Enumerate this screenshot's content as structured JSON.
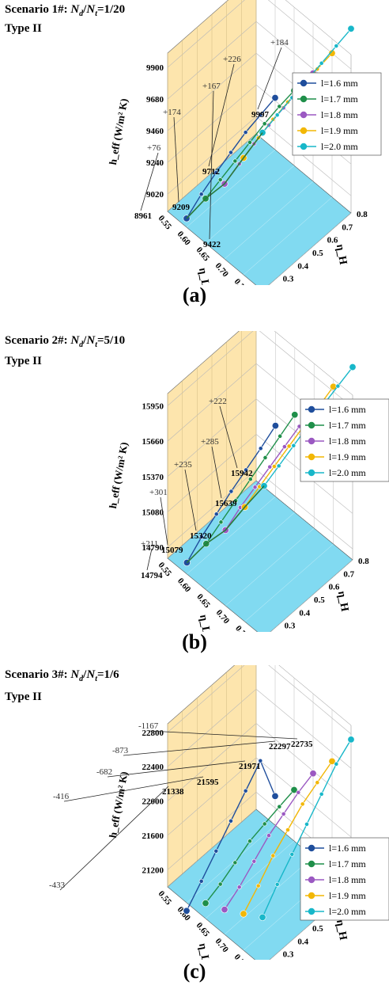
{
  "panels": [
    {
      "id": "a",
      "scenario_prefix": "Scenario 1#:",
      "ratio_value": "=1/20",
      "type_label": "Type II",
      "panel_label": "(a)"
    },
    {
      "id": "b",
      "scenario_prefix": "Scenario 2#:",
      "ratio_value": "=5/10",
      "type_label": "Type II",
      "panel_label": "(b)"
    },
    {
      "id": "c",
      "scenario_prefix": "Scenario 3#:",
      "ratio_value": "=1/6",
      "type_label": "Type II",
      "panel_label": "(c)"
    }
  ],
  "colors": {
    "l1.6": "#1f4e9c",
    "l1.7": "#1f8f4a",
    "l1.8": "#9b59c2",
    "l1.9": "#f2b705",
    "l2.0": "#18b7c9",
    "back_wall": "#fde5ad",
    "floor": "#7ad8f0"
  },
  "chart_data": [
    {
      "type": "line",
      "title": "",
      "zlabel": "h_eff (W/m² K)",
      "xlabel": "η_L",
      "ylabel": "η_H",
      "xlim": [
        0.55,
        0.8
      ],
      "ylim": [
        0.2,
        0.8
      ],
      "zlim": [
        8900,
        10000
      ],
      "x_ticks": [
        "0.55",
        "0.60",
        "0.65",
        "0.70",
        "0.75",
        "0.80"
      ],
      "y_ticks": [
        "0.2",
        "0.3",
        "0.4",
        "0.5",
        "0.6",
        "0.7",
        "0.8"
      ],
      "z_ticks": [
        "9020",
        "9240",
        "9460",
        "9680",
        "9900"
      ],
      "legend_position": "right",
      "series": [
        {
          "name": "l=1.6 mm",
          "x": 0.6,
          "eta_H": [
            0.2,
            0.3,
            0.4,
            0.5,
            0.6,
            0.7,
            0.8
          ],
          "values": [
            8961,
            9040,
            9100,
            9150,
            9200,
            9230,
            9260
          ]
        },
        {
          "name": "l=1.7 mm",
          "x": 0.65,
          "eta_H": [
            0.2,
            0.3,
            0.4,
            0.5,
            0.6,
            0.7,
            0.8
          ],
          "values": [
            9209,
            9250,
            9290,
            9330,
            9370,
            9400,
            9420
          ]
        },
        {
          "name": "l=1.8 mm",
          "x": 0.7,
          "eta_H": [
            0.2,
            0.3,
            0.4,
            0.5,
            0.6,
            0.7,
            0.8
          ],
          "values": [
            9422,
            9470,
            9520,
            9560,
            9590,
            9620,
            9650
          ]
        },
        {
          "name": "l=1.9 mm",
          "x": 0.75,
          "eta_H": [
            0.2,
            0.3,
            0.4,
            0.5,
            0.6,
            0.7,
            0.8
          ],
          "values": [
            9712,
            9760,
            9800,
            9830,
            9860,
            9880,
            9900
          ]
        },
        {
          "name": "l=2.0 mm",
          "x": 0.8,
          "eta_H": [
            0.2,
            0.3,
            0.4,
            0.5,
            0.6,
            0.7,
            0.8
          ],
          "values": [
            9997,
            10030,
            10060,
            10090,
            10120,
            10150,
            10180
          ]
        }
      ],
      "optimal_path": {
        "eta_H": [
          0.2,
          0.2,
          0.2,
          0.2,
          0.2
        ],
        "values": [
          8961,
          9209,
          9422,
          9712,
          9997
        ]
      },
      "annotations": [
        "8961",
        "9209",
        "9422",
        "9712",
        "9997",
        "+76",
        "+174",
        "+167",
        "+226",
        "+184"
      ]
    },
    {
      "type": "line",
      "title": "",
      "zlabel": "h_eff (W/m² K)",
      "xlabel": "η_L",
      "ylabel": "η_H",
      "xlim": [
        0.55,
        0.8
      ],
      "ylim": [
        0.2,
        0.8
      ],
      "zlim": [
        14700,
        16050
      ],
      "x_ticks": [
        "0.55",
        "0.60",
        "0.65",
        "0.70",
        "0.75",
        "0.80"
      ],
      "y_ticks": [
        "0.2",
        "0.3",
        "0.4",
        "0.5",
        "0.6",
        "0.7",
        "0.8"
      ],
      "z_ticks": [
        "14790",
        "15080",
        "15370",
        "15660",
        "15950"
      ],
      "legend_position": "right",
      "series": [
        {
          "name": "l=1.6 mm",
          "x": 0.6,
          "eta_H": [
            0.2,
            0.3,
            0.4,
            0.5,
            0.6,
            0.7,
            0.8
          ],
          "values": [
            14794,
            14900,
            14980,
            15060,
            15130,
            15200,
            15280
          ]
        },
        {
          "name": "l=1.7 mm",
          "x": 0.65,
          "eta_H": [
            0.2,
            0.3,
            0.4,
            0.5,
            0.6,
            0.7,
            0.8
          ],
          "values": [
            15079,
            15150,
            15220,
            15290,
            15360,
            15430,
            15500
          ]
        },
        {
          "name": "l=1.8 mm",
          "x": 0.7,
          "eta_H": [
            0.2,
            0.3,
            0.4,
            0.5,
            0.6,
            0.7,
            0.8
          ],
          "values": [
            15320,
            15400,
            15460,
            15520,
            15580,
            15640,
            15700
          ]
        },
        {
          "name": "l=1.9 mm",
          "x": 0.75,
          "eta_H": [
            0.2,
            0.3,
            0.4,
            0.5,
            0.6,
            0.7,
            0.8
          ],
          "values": [
            15639,
            15700,
            15760,
            15820,
            15880,
            15930,
            15990
          ]
        },
        {
          "name": "l=2.0 mm",
          "x": 0.8,
          "eta_H": [
            0.2,
            0.3,
            0.4,
            0.5,
            0.6,
            0.7,
            0.8
          ],
          "values": [
            15942,
            16000,
            16060,
            16120,
            16180,
            16230,
            16280
          ]
        }
      ],
      "optimal_path": {
        "eta_H": [
          0.2,
          0.2,
          0.2,
          0.2,
          0.2
        ],
        "values": [
          14794,
          15079,
          15320,
          15639,
          15942
        ]
      },
      "annotations": [
        "14794",
        "15079",
        "15320",
        "15639",
        "15942",
        "+211",
        "+301",
        "+235",
        "+285",
        "+222"
      ]
    },
    {
      "type": "line",
      "title": "",
      "zlabel": "h_eff (W/m² K)",
      "xlabel": "η_L",
      "ylabel": "η_H",
      "xlim": [
        0.55,
        0.8
      ],
      "ylim": [
        0.2,
        0.8
      ],
      "zlim": [
        21000,
        22900
      ],
      "x_ticks": [
        "0.55",
        "0.60",
        "0.65",
        "0.70",
        "0.75",
        "0.80"
      ],
      "y_ticks": [
        "0.2",
        "0.3",
        "0.4",
        "0.5",
        "0.6",
        "0.7",
        "0.8"
      ],
      "z_ticks": [
        "21200",
        "21600",
        "22000",
        "22400",
        "22800"
      ],
      "legend_position": "right",
      "series": [
        {
          "name": "l=1.6 mm",
          "x": 0.6,
          "eta_H": [
            0.2,
            0.3,
            0.4,
            0.5,
            0.6,
            0.7,
            0.8
          ],
          "values": [
            20905,
            21100,
            21300,
            21500,
            21700,
            21900,
            21338
          ]
        },
        {
          "name": "l=1.7 mm",
          "x": 0.65,
          "eta_H": [
            0.2,
            0.3,
            0.4,
            0.5,
            0.6,
            0.7,
            0.8
          ],
          "values": [
            21179,
            21250,
            21350,
            21450,
            21500,
            21550,
            21595
          ]
        },
        {
          "name": "l=1.8 mm",
          "x": 0.7,
          "eta_H": [
            0.2,
            0.3,
            0.4,
            0.5,
            0.6,
            0.7,
            0.8
          ],
          "values": [
            21289,
            21400,
            21550,
            21700,
            21800,
            21900,
            21971
          ]
        },
        {
          "name": "l=1.9 mm",
          "x": 0.75,
          "eta_H": [
            0.2,
            0.3,
            0.4,
            0.5,
            0.6,
            0.7,
            0.8
          ],
          "values": [
            21424,
            21600,
            21800,
            21950,
            22100,
            22200,
            22297
          ]
        },
        {
          "name": "l=2.0 mm",
          "x": 0.8,
          "eta_H": [
            0.2,
            0.3,
            0.4,
            0.5,
            0.6,
            0.7,
            0.8
          ],
          "values": [
            21568,
            21800,
            22000,
            22200,
            22400,
            22600,
            22735
          ]
        }
      ],
      "annotations": [
        "21338",
        "21595",
        "21971",
        "22297",
        "22735",
        "-433",
        "-416",
        "-682",
        "-873",
        "-1167"
      ]
    }
  ]
}
